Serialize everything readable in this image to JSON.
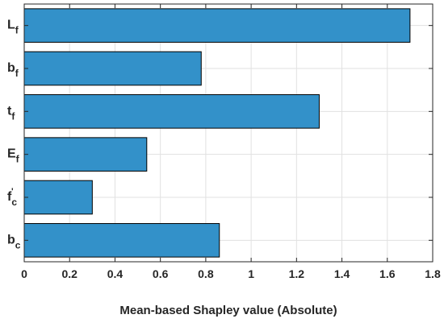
{
  "chart_data": {
    "type": "bar",
    "orientation": "horizontal",
    "categories": [
      {
        "base": "L",
        "sub": "f",
        "sup": ""
      },
      {
        "base": "b",
        "sub": "f",
        "sup": ""
      },
      {
        "base": "t",
        "sub": "f",
        "sup": ""
      },
      {
        "base": "E",
        "sub": "f",
        "sup": ""
      },
      {
        "base": "f",
        "sub": "c",
        "sup": "'"
      },
      {
        "base": "b",
        "sub": "c",
        "sup": ""
      }
    ],
    "values": [
      1.7,
      0.78,
      1.3,
      0.54,
      0.3,
      0.86
    ],
    "xlabel": "Mean-based Shapley value (Absolute)",
    "xlim": [
      0,
      1.8
    ],
    "xticks": [
      "0",
      "0.2",
      "0.4",
      "0.6",
      "0.8",
      "1",
      "1.2",
      "1.4",
      "1.6",
      "1.8"
    ],
    "grid": true,
    "colors": {
      "bar_fill": "#3391c9",
      "bar_edge": "#000000",
      "grid": "#e1e1e1",
      "axis": "#262626"
    }
  }
}
